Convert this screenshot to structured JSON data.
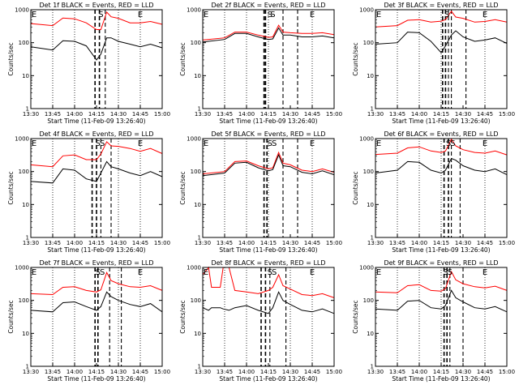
{
  "figure": {
    "background": "#ffffff",
    "events_color": "#000000",
    "lld_color": "#ff0000"
  },
  "chart_data": [
    {
      "type": "line",
      "title": "Det 1f BLACK = Events, RED = LLD",
      "xlabel": "Start Time (11-Feb-09 13:26:40)",
      "ylabel": "Counts/sec",
      "yscale": "log",
      "ylim": [
        1,
        1000
      ],
      "xlim": [
        "13:30",
        "15:00"
      ],
      "x_ticks": [
        "13:30",
        "13:45",
        "14:00",
        "14:15",
        "14:30",
        "14:45",
        "15:00"
      ],
      "y_ticks": [
        "1",
        "10",
        "100",
        "1000"
      ],
      "markers": [
        "E",
        "S",
        "E"
      ],
      "series": [
        {
          "name": "LLD",
          "color": "#ff0000",
          "x": [
            "13:30",
            "13:45",
            "13:52",
            "14:00",
            "14:08",
            "14:15",
            "14:18",
            "14:22",
            "14:25",
            "14:30",
            "14:38",
            "14:45",
            "14:52",
            "15:00"
          ],
          "y": [
            380,
            330,
            560,
            530,
            400,
            250,
            250,
            850,
            610,
            550,
            400,
            400,
            440,
            360
          ]
        },
        {
          "name": "Events",
          "color": "#000000",
          "x": [
            "13:30",
            "13:45",
            "13:52",
            "14:00",
            "14:08",
            "14:15",
            "14:18",
            "14:22",
            "14:25",
            "14:30",
            "14:38",
            "14:45",
            "14:52",
            "15:00"
          ],
          "y": [
            75,
            60,
            115,
            110,
            80,
            30,
            45,
            140,
            140,
            110,
            90,
            75,
            90,
            70
          ]
        }
      ]
    },
    {
      "type": "line",
      "title": "Det 2f BLACK = Events, RED = LLD",
      "xlabel": "Start Time (11-Feb-09 13:26:40)",
      "ylabel": "Counts/sec",
      "yscale": "log",
      "ylim": [
        1,
        1000
      ],
      "xlim": [
        "13:30",
        "15:00"
      ],
      "x_ticks": [
        "13:30",
        "13:45",
        "14:00",
        "14:15",
        "14:30",
        "14:45",
        "15:00"
      ],
      "y_ticks": [
        "1",
        "10",
        "100",
        "1000"
      ],
      "markers": [
        "E",
        "S",
        "S",
        "E"
      ],
      "series": [
        {
          "name": "LLD",
          "color": "#ff0000",
          "x": [
            "13:30",
            "13:45",
            "13:52",
            "14:00",
            "14:08",
            "14:15",
            "14:18",
            "14:22",
            "14:25",
            "14:30",
            "14:38",
            "14:45",
            "14:52",
            "15:00"
          ],
          "y": [
            120,
            140,
            210,
            210,
            170,
            145,
            150,
            340,
            210,
            200,
            190,
            190,
            200,
            175
          ]
        },
        {
          "name": "Events",
          "color": "#000000",
          "x": [
            "13:30",
            "13:45",
            "13:52",
            "14:00",
            "14:08",
            "14:15",
            "14:18",
            "14:22",
            "14:25",
            "14:30",
            "14:38",
            "14:45",
            "14:52",
            "15:00"
          ],
          "y": [
            105,
            125,
            190,
            190,
            150,
            125,
            130,
            280,
            170,
            170,
            150,
            150,
            160,
            140
          ]
        }
      ]
    },
    {
      "type": "line",
      "title": "Det 3f BLACK = Events, RED = LLD",
      "xlabel": "Start Time (11-Feb-09 13:26:40)",
      "ylabel": "Counts/sec",
      "yscale": "log",
      "ylim": [
        1,
        1000
      ],
      "xlim": [
        "13:30",
        "15:00"
      ],
      "x_ticks": [
        "13:30",
        "13:45",
        "14:00",
        "14:15",
        "14:30",
        "14:45",
        "15:00"
      ],
      "y_ticks": [
        "1",
        "10",
        "100",
        "1000"
      ],
      "markers": [
        "E",
        "S",
        "E"
      ],
      "series": [
        {
          "name": "LLD",
          "color": "#ff0000",
          "x": [
            "13:30",
            "13:45",
            "13:52",
            "14:00",
            "14:08",
            "14:15",
            "14:18",
            "14:22",
            "14:25",
            "14:30",
            "14:38",
            "14:45",
            "14:52",
            "15:00"
          ],
          "y": [
            300,
            330,
            480,
            500,
            420,
            450,
            500,
            900,
            600,
            550,
            420,
            440,
            500,
            420
          ]
        },
        {
          "name": "Events",
          "color": "#000000",
          "x": [
            "13:30",
            "13:45",
            "13:52",
            "14:00",
            "14:08",
            "14:15",
            "14:18",
            "14:22",
            "14:25",
            "14:30",
            "14:38",
            "14:45",
            "14:52",
            "15:00"
          ],
          "y": [
            90,
            100,
            210,
            200,
            110,
            50,
            80,
            170,
            230,
            150,
            110,
            120,
            140,
            95
          ]
        }
      ]
    },
    {
      "type": "line",
      "title": "Det 4f BLACK = Events, RED = LLD",
      "xlabel": "Start Time (11-Feb-09 13:26:40)",
      "ylabel": "Counts/sec",
      "yscale": "log",
      "ylim": [
        1,
        1000
      ],
      "xlim": [
        "13:30",
        "15:00"
      ],
      "x_ticks": [
        "13:30",
        "13:45",
        "14:00",
        "14:15",
        "14:30",
        "14:45",
        "15:00"
      ],
      "y_ticks": [
        "1",
        "10",
        "100",
        "1000"
      ],
      "markers": [
        "E",
        "S",
        "S",
        "E"
      ],
      "series": [
        {
          "name": "LLD",
          "color": "#ff0000",
          "x": [
            "13:30",
            "13:45",
            "13:52",
            "14:00",
            "14:08",
            "14:15",
            "14:18",
            "14:22",
            "14:25",
            "14:30",
            "14:38",
            "14:45",
            "14:52",
            "15:00"
          ],
          "y": [
            160,
            140,
            300,
            320,
            230,
            230,
            340,
            800,
            600,
            580,
            500,
            410,
            500,
            350
          ]
        },
        {
          "name": "Events",
          "color": "#000000",
          "x": [
            "13:30",
            "13:45",
            "13:52",
            "14:00",
            "14:08",
            "14:15",
            "14:18",
            "14:22",
            "14:25",
            "14:30",
            "14:38",
            "14:45",
            "14:52",
            "15:00"
          ],
          "y": [
            50,
            45,
            120,
            110,
            60,
            50,
            90,
            200,
            140,
            120,
            90,
            75,
            100,
            70
          ]
        }
      ]
    },
    {
      "type": "line",
      "title": "Det 5f BLACK = Events, RED = LLD",
      "xlabel": "Start Time (11-Feb-09 13:26:40)",
      "ylabel": "Counts/sec",
      "yscale": "log",
      "ylim": [
        1,
        1000
      ],
      "xlim": [
        "13:30",
        "15:00"
      ],
      "x_ticks": [
        "13:30",
        "13:45",
        "14:00",
        "14:15",
        "14:30",
        "14:45",
        "15:00"
      ],
      "y_ticks": [
        "1",
        "10",
        "100",
        "1000"
      ],
      "markers": [
        "E",
        "S",
        "S",
        "E"
      ],
      "series": [
        {
          "name": "LLD",
          "color": "#ff0000",
          "x": [
            "13:30",
            "13:45",
            "13:52",
            "14:00",
            "14:08",
            "14:15",
            "14:18",
            "14:22",
            "14:25",
            "14:30",
            "14:38",
            "14:45",
            "14:52",
            "15:00"
          ],
          "y": [
            85,
            100,
            200,
            210,
            150,
            120,
            130,
            380,
            180,
            160,
            110,
            100,
            120,
            95
          ]
        },
        {
          "name": "Events",
          "color": "#000000",
          "x": [
            "13:30",
            "13:45",
            "13:52",
            "14:00",
            "14:08",
            "14:15",
            "14:18",
            "14:22",
            "14:25",
            "14:30",
            "14:38",
            "14:45",
            "14:52",
            "15:00"
          ],
          "y": [
            75,
            90,
            180,
            190,
            130,
            105,
            115,
            320,
            150,
            140,
            95,
            85,
            105,
            80
          ]
        }
      ]
    },
    {
      "type": "line",
      "title": "Det 6f BLACK = Events, RED = LLD",
      "xlabel": "Start Time (11-Feb-09 13:26:40)",
      "ylabel": "Counts/sec",
      "yscale": "log",
      "ylim": [
        1,
        1000
      ],
      "xlim": [
        "13:30",
        "15:00"
      ],
      "x_ticks": [
        "13:30",
        "13:45",
        "14:00",
        "14:15",
        "14:30",
        "14:45",
        "15:00"
      ],
      "y_ticks": [
        "1",
        "10",
        "100",
        "1000"
      ],
      "markers": [
        "E",
        "S",
        "S",
        "E"
      ],
      "series": [
        {
          "name": "LLD",
          "color": "#ff0000",
          "x": [
            "13:30",
            "13:45",
            "13:52",
            "14:00",
            "14:08",
            "14:15",
            "14:18",
            "14:22",
            "14:25",
            "14:30",
            "14:38",
            "14:45",
            "14:52",
            "15:00"
          ],
          "y": [
            330,
            360,
            520,
            560,
            420,
            380,
            420,
            950,
            600,
            460,
            380,
            360,
            420,
            320
          ]
        },
        {
          "name": "Events",
          "color": "#000000",
          "x": [
            "13:30",
            "13:45",
            "13:52",
            "14:00",
            "14:08",
            "14:15",
            "14:18",
            "14:22",
            "14:25",
            "14:30",
            "14:38",
            "14:45",
            "14:52",
            "15:00"
          ],
          "y": [
            90,
            110,
            200,
            190,
            110,
            90,
            110,
            250,
            220,
            150,
            110,
            100,
            120,
            80
          ]
        }
      ]
    },
    {
      "type": "line",
      "title": "Det 7f BLACK = Events, RED = LLD",
      "xlabel": "Start Time (11-Feb-09 13:26:40)",
      "ylabel": "Counts/sec",
      "yscale": "log",
      "ylim": [
        1,
        1000
      ],
      "xlim": [
        "13:30",
        "15:00"
      ],
      "x_ticks": [
        "13:30",
        "13:45",
        "14:00",
        "14:15",
        "14:30",
        "14:45",
        "15:00"
      ],
      "y_ticks": [
        "1",
        "10",
        "100",
        "1000"
      ],
      "markers": [
        "E",
        "S",
        "S",
        "E"
      ],
      "series": [
        {
          "name": "LLD",
          "color": "#ff0000",
          "x": [
            "13:30",
            "13:45",
            "13:52",
            "14:00",
            "14:08",
            "14:15",
            "14:18",
            "14:22",
            "14:25",
            "14:30",
            "14:38",
            "14:45",
            "14:52",
            "15:00"
          ],
          "y": [
            160,
            150,
            250,
            260,
            200,
            180,
            210,
            700,
            400,
            320,
            260,
            250,
            280,
            200
          ]
        },
        {
          "name": "Events",
          "color": "#000000",
          "x": [
            "13:30",
            "13:45",
            "13:52",
            "14:00",
            "14:08",
            "14:15",
            "14:18",
            "14:22",
            "14:25",
            "14:30",
            "14:38",
            "14:45",
            "14:52",
            "15:00"
          ],
          "y": [
            50,
            45,
            85,
            90,
            65,
            50,
            65,
            180,
            130,
            100,
            75,
            65,
            80,
            45
          ]
        }
      ]
    },
    {
      "type": "line",
      "title": "Det 8f BLACK = Events, RED = LLD",
      "xlabel": "Start Time (11-Feb-09 13:26:40)",
      "ylabel": "Counts/sec",
      "yscale": "log",
      "ylim": [
        1,
        1000
      ],
      "xlim": [
        "13:30",
        "15:00"
      ],
      "x_ticks": [
        "13:30",
        "13:45",
        "14:00",
        "14:15",
        "14:30",
        "14:45",
        "15:00"
      ],
      "y_ticks": [
        "1",
        "10",
        "100",
        "1000"
      ],
      "markers": [
        "E",
        "S",
        "S",
        "E"
      ],
      "series": [
        {
          "name": "LLD",
          "color": "#ff0000",
          "x": [
            "13:30",
            "13:34",
            "13:36",
            "13:42",
            "13:44",
            "13:48",
            "13:52",
            "14:00",
            "14:08",
            "14:15",
            "14:18",
            "14:22",
            "14:25",
            "14:30",
            "14:38",
            "14:45",
            "14:52",
            "15:00"
          ],
          "y": [
            600,
            1000,
            250,
            250,
            1000,
            1000,
            200,
            180,
            160,
            200,
            250,
            600,
            280,
            220,
            150,
            140,
            160,
            120
          ]
        },
        {
          "name": "Events",
          "color": "#000000",
          "x": [
            "13:30",
            "13:34",
            "13:36",
            "13:42",
            "13:44",
            "13:48",
            "13:52",
            "14:00",
            "14:08",
            "14:15",
            "14:18",
            "14:22",
            "14:25",
            "14:30",
            "14:38",
            "14:45",
            "14:52",
            "15:00"
          ],
          "y": [
            60,
            50,
            60,
            60,
            55,
            50,
            60,
            70,
            50,
            40,
            60,
            180,
            100,
            75,
            50,
            45,
            55,
            40
          ]
        }
      ]
    },
    {
      "type": "line",
      "title": "Det 9f BLACK = Events, RED = LLD",
      "xlabel": "Start Time (11-Feb-09 13:26:40)",
      "ylabel": "Counts/sec",
      "yscale": "log",
      "ylim": [
        1,
        1000
      ],
      "xlim": [
        "13:30",
        "15:00"
      ],
      "x_ticks": [
        "13:30",
        "13:45",
        "14:00",
        "14:15",
        "14:30",
        "14:45",
        "15:00"
      ],
      "y_ticks": [
        "1",
        "10",
        "100",
        "1000"
      ],
      "markers": [
        "E",
        "S",
        "S",
        "E"
      ],
      "series": [
        {
          "name": "LLD",
          "color": "#ff0000",
          "x": [
            "13:30",
            "13:45",
            "13:52",
            "14:00",
            "14:08",
            "14:15",
            "14:18",
            "14:22",
            "14:25",
            "14:30",
            "14:38",
            "14:45",
            "14:52",
            "15:00"
          ],
          "y": [
            180,
            170,
            280,
            300,
            200,
            190,
            230,
            750,
            420,
            320,
            260,
            240,
            270,
            200
          ]
        },
        {
          "name": "Events",
          "color": "#000000",
          "x": [
            "13:30",
            "13:45",
            "13:52",
            "14:00",
            "14:08",
            "14:15",
            "14:18",
            "14:22",
            "14:25",
            "14:30",
            "14:38",
            "14:45",
            "14:52",
            "15:00"
          ],
          "y": [
            55,
            50,
            95,
            100,
            60,
            55,
            70,
            200,
            120,
            90,
            60,
            55,
            65,
            45
          ]
        }
      ]
    }
  ]
}
